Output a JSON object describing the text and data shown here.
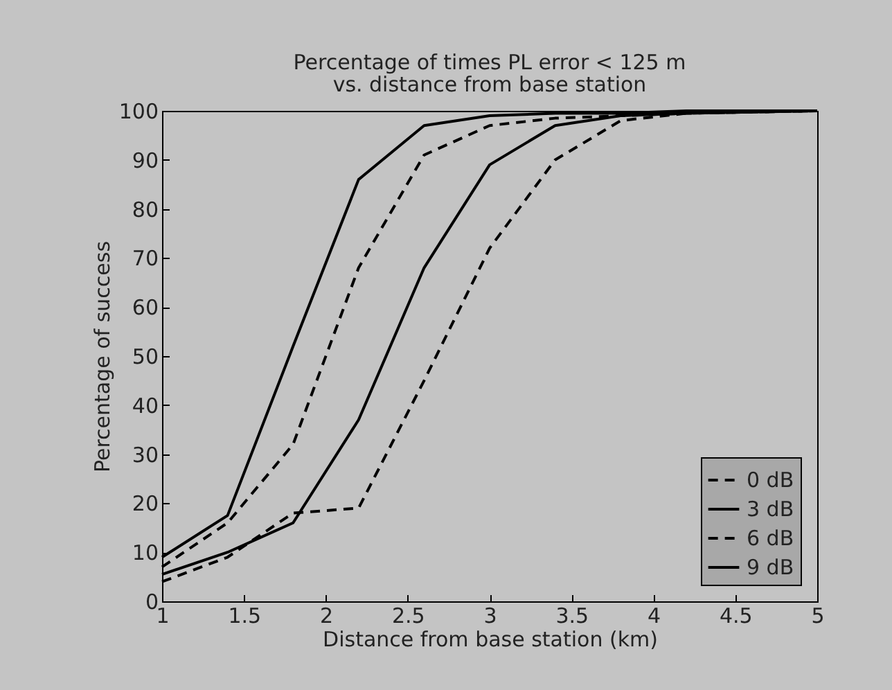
{
  "chart_data": {
    "type": "line",
    "title": "Percentage of times PL error < 125 m",
    "subtitle": "vs. distance from base station",
    "xlabel": "Distance from base station (km)",
    "ylabel": "Percentage of success",
    "x": [
      1,
      1.4,
      1.8,
      2.2,
      2.6,
      3,
      3.4,
      3.8,
      4.2,
      5
    ],
    "series": [
      {
        "name": "0 dB",
        "color": "#000000",
        "line_style": "dashed",
        "values": [
          4,
          9,
          18,
          19,
          45,
          72,
          90,
          98,
          99.5,
          100
        ]
      },
      {
        "name": "3 dB",
        "color": "#000000",
        "line_style": "solid",
        "values": [
          5.5,
          10,
          16,
          37,
          68,
          89,
          97,
          99,
          99.5,
          100
        ]
      },
      {
        "name": "6 dB",
        "color": "#000000",
        "line_style": "dashed",
        "values": [
          7,
          16,
          32,
          68,
          91,
          97,
          98.5,
          99,
          99.5,
          100
        ]
      },
      {
        "name": "9 dB",
        "color": "#000000",
        "line_style": "solid",
        "values": [
          9,
          17.5,
          52,
          86,
          97,
          99,
          99.5,
          99.5,
          100,
          100
        ]
      }
    ],
    "xlim": [
      1,
      5
    ],
    "xticks": [
      1,
      1.5,
      2,
      2.5,
      3,
      3.5,
      4,
      4.5,
      5
    ],
    "ylim": [
      0,
      100
    ],
    "yticks": [
      0,
      10,
      20,
      30,
      40,
      50,
      60,
      70,
      80,
      90,
      100
    ],
    "legend": "bottom right",
    "grid": false
  }
}
